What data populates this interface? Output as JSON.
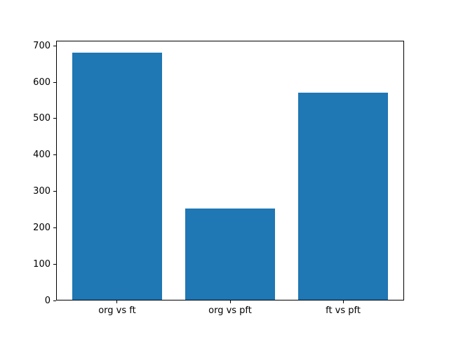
{
  "chart_data": {
    "type": "bar",
    "title": "",
    "xlabel": "",
    "ylabel": "",
    "categories": [
      "org vs ft",
      "org vs pft",
      "ft vs pft"
    ],
    "values": [
      680,
      250,
      570
    ],
    "ylim": [
      0,
      714
    ],
    "yticks": [
      0,
      100,
      200,
      300,
      400,
      500,
      600,
      700
    ],
    "ytick_labels": [
      "0",
      "100",
      "200",
      "300",
      "400",
      "500",
      "600",
      "700"
    ],
    "bar_color": "#1f77b4",
    "bar_width_fraction": 0.8,
    "axis_color": "#000000",
    "tick_label_color": "#000000",
    "background_color": "#ffffff",
    "grid": false,
    "legend": null
  }
}
